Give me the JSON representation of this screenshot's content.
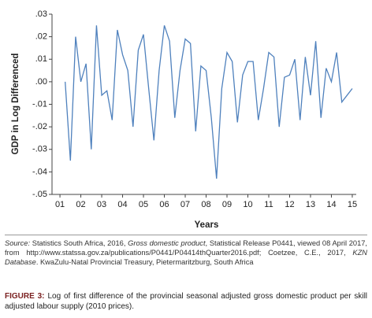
{
  "chart_data": {
    "type": "line",
    "ylabel": "GDP in Log Differenced",
    "xlabel": "Years",
    "x": [
      1.25,
      1.5,
      1.75,
      2.0,
      2.25,
      2.5,
      2.75,
      3.0,
      3.25,
      3.5,
      3.75,
      4.0,
      4.25,
      4.5,
      4.75,
      5.0,
      5.25,
      5.5,
      5.75,
      6.0,
      6.25,
      6.5,
      6.75,
      7.0,
      7.25,
      7.5,
      7.75,
      8.0,
      8.25,
      8.5,
      8.75,
      9.0,
      9.25,
      9.5,
      9.75,
      10.0,
      10.25,
      10.5,
      10.75,
      11.0,
      11.25,
      11.5,
      11.75,
      12.0,
      12.25,
      12.5,
      12.75,
      13.0,
      13.25,
      13.5,
      13.75,
      14.0,
      14.25,
      14.5,
      14.75,
      15.0
    ],
    "series": [
      {
        "color": "#4f81bd",
        "values": [
          0.0,
          -0.035,
          0.02,
          0.0,
          0.008,
          -0.03,
          0.025,
          -0.006,
          -0.004,
          -0.017,
          0.023,
          0.012,
          0.005,
          -0.02,
          0.014,
          0.021,
          -0.003,
          -0.026,
          0.005,
          0.025,
          0.018,
          -0.016,
          0.005,
          0.019,
          0.017,
          -0.022,
          0.007,
          0.005,
          -0.016,
          -0.043,
          -0.003,
          0.013,
          0.009,
          -0.018,
          0.003,
          0.009,
          0.009,
          -0.017,
          -0.003,
          0.013,
          0.011,
          -0.02,
          0.002,
          0.003,
          0.01,
          -0.017,
          0.011,
          -0.006,
          0.018,
          -0.016,
          0.006,
          0.0,
          0.013,
          -0.009,
          -0.006,
          -0.003
        ]
      }
    ],
    "xlim": [
      0.62,
      15.19
    ],
    "xticks": [
      {
        "value": 1,
        "label": "01"
      },
      {
        "value": 2,
        "label": "02"
      },
      {
        "value": 3,
        "label": "03"
      },
      {
        "value": 4,
        "label": "04"
      },
      {
        "value": 5,
        "label": "05"
      },
      {
        "value": 6,
        "label": "06"
      },
      {
        "value": 7,
        "label": "07"
      },
      {
        "value": 8,
        "label": "08"
      },
      {
        "value": 9,
        "label": "09"
      },
      {
        "value": 10,
        "label": "10"
      },
      {
        "value": 11,
        "label": "11"
      },
      {
        "value": 12,
        "label": "12"
      },
      {
        "value": 13,
        "label": "13"
      },
      {
        "value": 14,
        "label": "14"
      },
      {
        "value": 15,
        "label": "15"
      }
    ],
    "ylim": [
      -0.05,
      0.03
    ],
    "yticks": [
      {
        "value": 0.03,
        "label": ".03"
      },
      {
        "value": 0.02,
        "label": ".02"
      },
      {
        "value": 0.01,
        "label": ".01"
      },
      {
        "value": 0,
        "label": ".00"
      },
      {
        "value": -0.01,
        "label": "-.01"
      },
      {
        "value": -0.02,
        "label": "-.02"
      },
      {
        "value": -0.03,
        "label": "-.03"
      },
      {
        "value": -0.04,
        "label": "-.04"
      },
      {
        "value": -0.05,
        "label": "-.05"
      }
    ]
  },
  "source": [
    {
      "text": "Source:",
      "italic": true
    },
    {
      "text": " Statistics South Africa, 2016, ",
      "italic": false
    },
    {
      "text": "Gross domestic product",
      "italic": true
    },
    {
      "text": ", Statistical Release P0441, viewed 08 April 2017, from http://www.statssa.gov.za/publications/P0441/P04414thQuarter2016.pdf; Coetzee, C.E., 2017, ",
      "italic": false
    },
    {
      "text": "KZN Database",
      "italic": true
    },
    {
      "text": ". KwaZulu-Natal Provincial Treasury, Pietermaritzburg, South Africa",
      "italic": false
    }
  ],
  "caption": {
    "label": "FIGURE 3:",
    "text": "Log of first difference of the provincial seasonal adjusted gross domestic product per skill adjusted labour supply (2010 prices)."
  }
}
